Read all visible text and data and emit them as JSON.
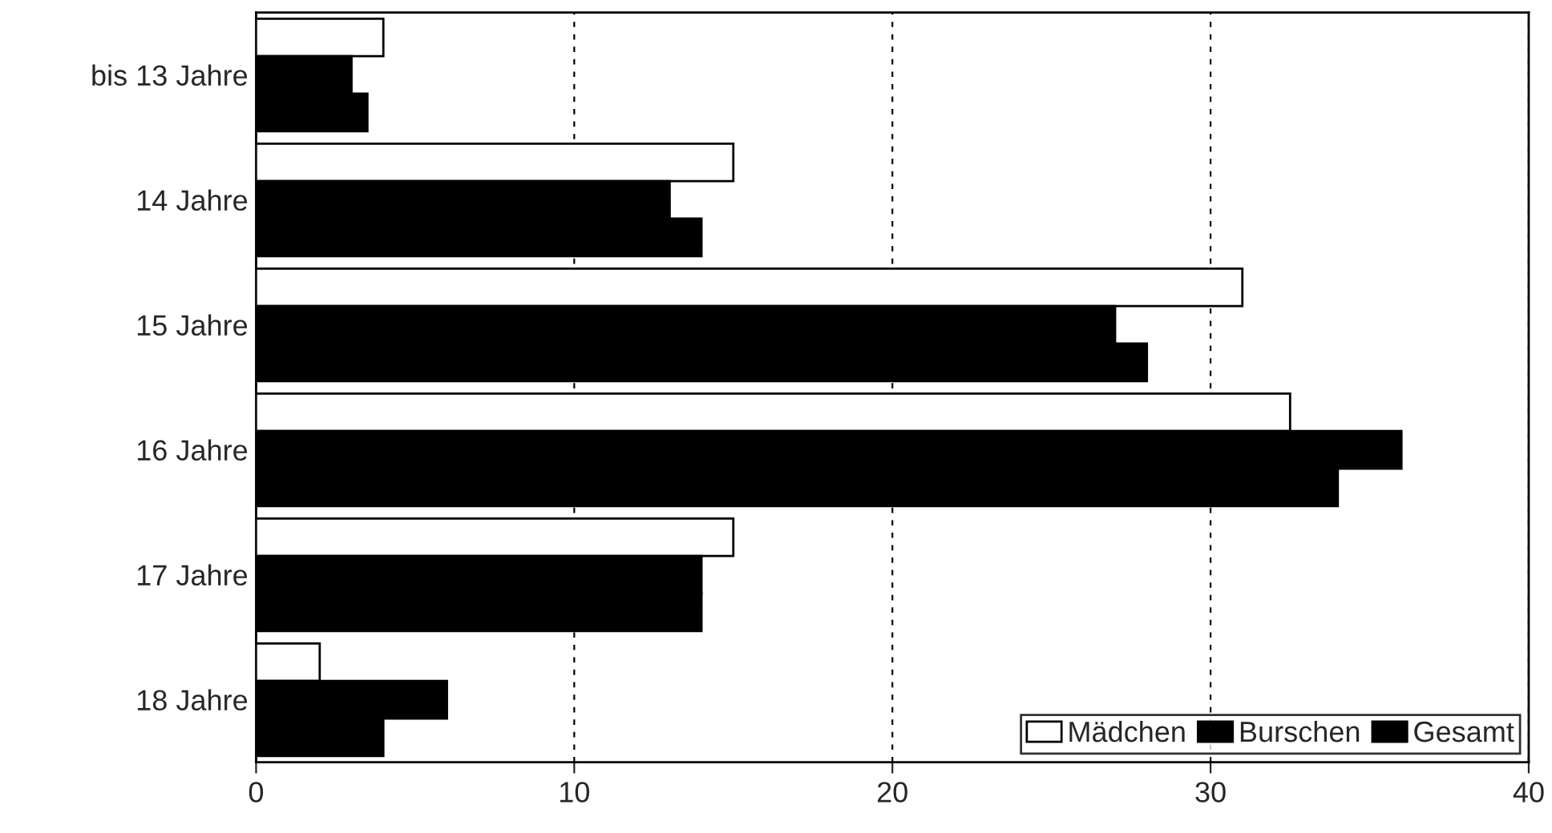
{
  "chart_data": {
    "type": "bar",
    "orientation": "horizontal",
    "categories": [
      "bis 13 Jahre",
      "14 Jahre",
      "15 Jahre",
      "16 Jahre",
      "17 Jahre",
      "18 Jahre"
    ],
    "series": [
      {
        "name": "Mädchen",
        "color": "#ffffff",
        "values": [
          4,
          15,
          31,
          32.5,
          15,
          2
        ]
      },
      {
        "name": "Burschen",
        "color": "#000000",
        "values": [
          3,
          13,
          27,
          36,
          14,
          6
        ]
      },
      {
        "name": "Gesamt",
        "color": "#000000",
        "values": [
          3.5,
          14,
          28,
          34,
          14,
          4
        ]
      }
    ],
    "xlim": [
      0,
      40
    ],
    "xticks": [
      0,
      10,
      20,
      30,
      40
    ],
    "grid": "x",
    "legend": "bottom right"
  }
}
